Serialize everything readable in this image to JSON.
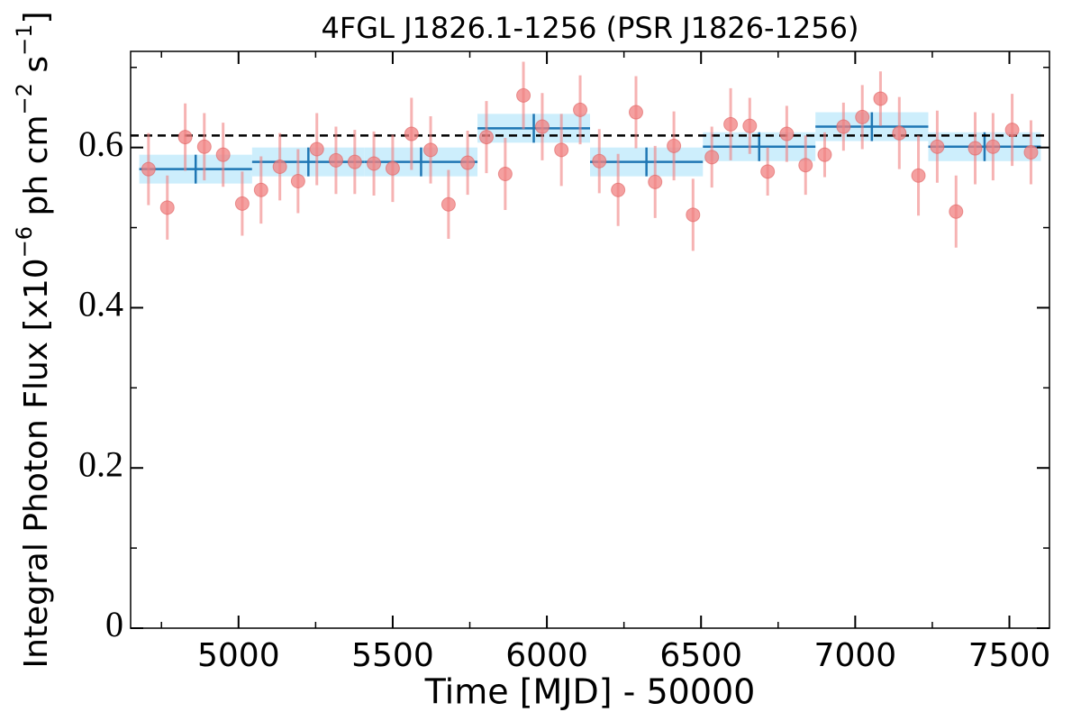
{
  "chart_data": {
    "type": "scatter",
    "title": "4FGL J1826.1-1256 (PSR J1826-1256)",
    "xlabel": "Time [MJD] - 50000",
    "ylabel": [
      "Integral Photon Flux [x10",
      "−6",
      " ph cm",
      "−2",
      " s",
      "−1",
      "]"
    ],
    "xlim": [
      4650,
      7630
    ],
    "ylim": [
      0,
      0.72
    ],
    "xticks": [
      5000,
      5500,
      6000,
      6500,
      7000,
      7500
    ],
    "xminorticks": [
      4750,
      5250,
      5750,
      6250,
      6750,
      7250
    ],
    "yticks": [
      0,
      0.2,
      0.4,
      0.6
    ],
    "yminorticks": [
      0.1,
      0.3,
      0.5,
      0.7
    ],
    "series": [
      {
        "color": "#f08080",
        "x": [
          4708,
          4769,
          4827,
          4889,
          4950,
          5012,
          5073,
          5134,
          5193,
          5254,
          5316,
          5377,
          5439,
          5500,
          5561,
          5623,
          5681,
          5743,
          5804,
          5865,
          5924,
          5985,
          6047,
          6108,
          6170,
          6231,
          6289,
          6351,
          6412,
          6474,
          6535,
          6596,
          6658,
          6716,
          6778,
          6839,
          6901,
          6962,
          7023,
          7082,
          7143,
          7205,
          7266,
          7327,
          7389,
          7447,
          7509,
          7570
        ],
        "values": [
          0.573,
          0.525,
          0.613,
          0.601,
          0.591,
          0.53,
          0.547,
          0.576,
          0.558,
          0.598,
          0.584,
          0.582,
          0.58,
          0.574,
          0.617,
          0.597,
          0.529,
          0.581,
          0.613,
          0.567,
          0.665,
          0.626,
          0.597,
          0.647,
          0.583,
          0.547,
          0.644,
          0.557,
          0.602,
          0.516,
          0.588,
          0.629,
          0.627,
          0.57,
          0.617,
          0.578,
          0.591,
          0.626,
          0.638,
          0.661,
          0.618,
          0.565,
          0.601,
          0.52,
          0.599,
          0.601,
          0.622,
          0.594
        ],
        "errors": [
          0.045,
          0.04,
          0.042,
          0.042,
          0.04,
          0.04,
          0.042,
          0.042,
          0.04,
          0.045,
          0.042,
          0.04,
          0.04,
          0.042,
          0.045,
          0.042,
          0.043,
          0.04,
          0.045,
          0.045,
          0.042,
          0.042,
          0.045,
          0.043,
          0.04,
          0.045,
          0.045,
          0.045,
          0.043,
          0.045,
          0.038,
          0.045,
          0.035,
          0.03,
          0.035,
          0.037,
          0.028,
          0.03,
          0.04,
          0.034,
          0.045,
          0.05,
          0.045,
          0.045,
          0.045,
          0.042,
          0.045,
          0.04
        ]
      }
    ],
    "bins": {
      "color": "#1f77b4",
      "band_color": "#cdeefc",
      "edges": [
        4678,
        5044,
        5409,
        5775,
        6140,
        6506,
        6871,
        7237,
        7602
      ],
      "values": [
        0.573,
        0.582,
        0.582,
        0.624,
        0.582,
        0.601,
        0.626,
        0.601
      ],
      "errors": [
        0.018,
        0.018,
        0.018,
        0.018,
        0.018,
        0.018,
        0.018,
        0.018
      ]
    },
    "hline": {
      "value": 0.615,
      "color": "#000000"
    }
  }
}
